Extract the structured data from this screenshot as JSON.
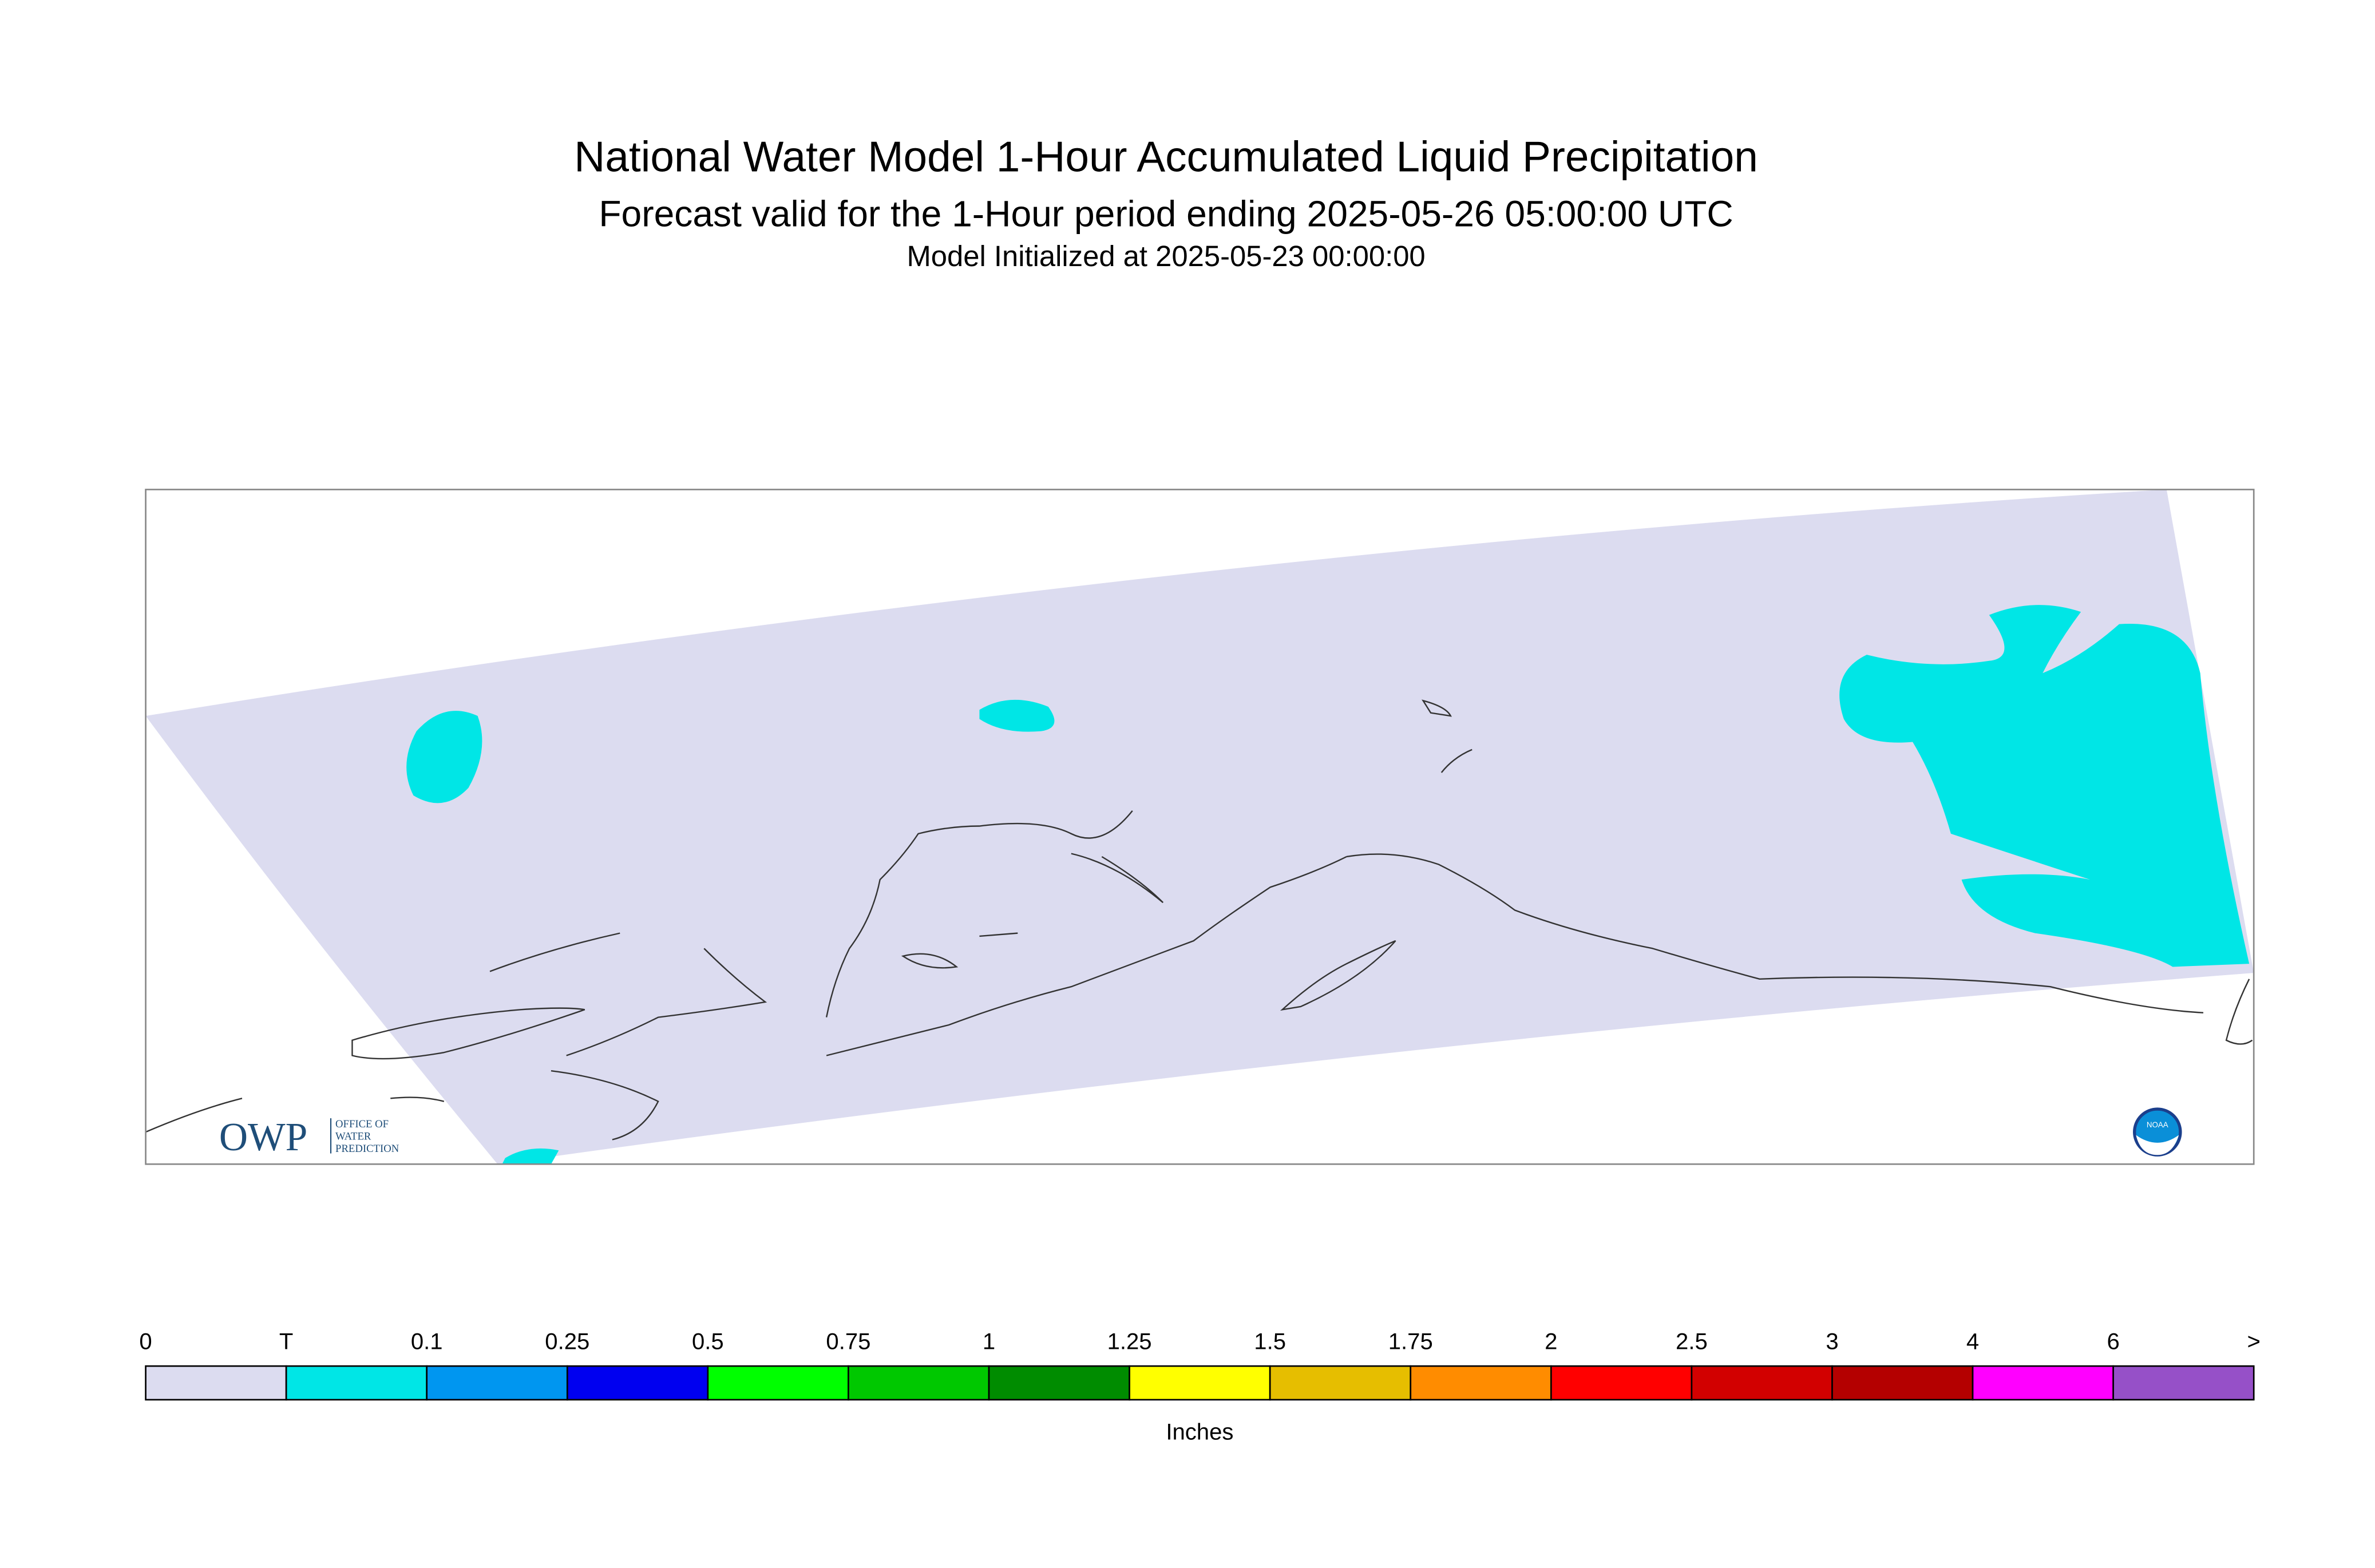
{
  "header": {
    "title": "National Water Model 1-Hour Accumulated Liquid Precipitation",
    "subtitle": "Forecast valid for the 1-Hour period ending 2025-05-26 05:00:00 UTC",
    "initialized": "Model Initialized at 2025-05-23 00:00:00"
  },
  "logos": {
    "owp": "OWP",
    "owp_lines": [
      "OFFICE OF",
      "WATER",
      "PREDICTION"
    ],
    "noaa": "NOAA"
  },
  "legend": {
    "labels": [
      "0",
      "T",
      "0.1",
      "0.25",
      "0.5",
      "0.75",
      "1",
      "1.25",
      "1.5",
      "1.75",
      "2",
      "2.5",
      "3",
      "4",
      "6",
      ">"
    ],
    "colors": [
      "#dcdcf0",
      "#00e6e6",
      "#0096f0",
      "#0000f0",
      "#00ff00",
      "#00c800",
      "#008c00",
      "#ffff00",
      "#e6be00",
      "#ff8c00",
      "#ff0000",
      "#d20000",
      "#b40000",
      "#ff00ff",
      "#9650c8"
    ],
    "unit": "Inches"
  }
}
